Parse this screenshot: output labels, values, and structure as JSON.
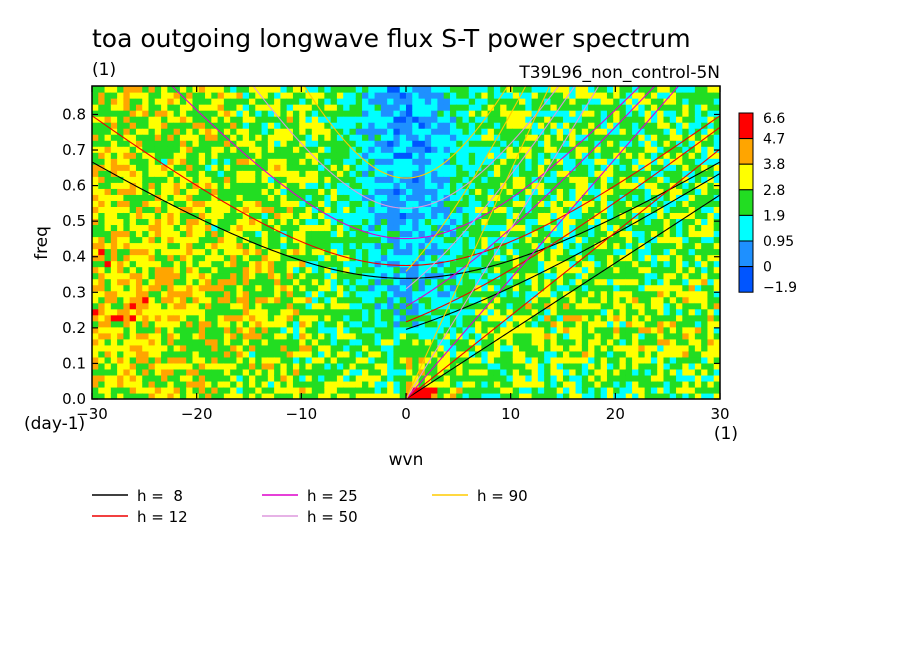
{
  "chart_data": {
    "type": "heatmap",
    "title": "toa outgoing longwave flux S-T power spectrum",
    "subtitle_left": "(1)",
    "subtitle_right": "T39L96_non_control-5N",
    "xlabel": "wvn",
    "ylabel": "freq",
    "x_unit": "(1)",
    "y_unit": "(day-1)",
    "xlim": [
      -30,
      30
    ],
    "ylim": [
      0,
      0.88
    ],
    "x_ticks": [
      {
        "value": -30,
        "label": "−30"
      },
      {
        "value": -20,
        "label": "−20"
      },
      {
        "value": -10,
        "label": "−10"
      },
      {
        "value": 0,
        "label": "0"
      },
      {
        "value": 10,
        "label": "10"
      },
      {
        "value": 20,
        "label": "20"
      },
      {
        "value": 30,
        "label": "30"
      }
    ],
    "y_ticks": [
      {
        "value": 0.0,
        "label": "0.0"
      },
      {
        "value": 0.1,
        "label": "0.1"
      },
      {
        "value": 0.2,
        "label": "0.2"
      },
      {
        "value": 0.3,
        "label": "0.3"
      },
      {
        "value": 0.4,
        "label": "0.4"
      },
      {
        "value": 0.5,
        "label": "0.5"
      },
      {
        "value": 0.6,
        "label": "0.6"
      },
      {
        "value": 0.7,
        "label": "0.7"
      },
      {
        "value": 0.8,
        "label": "0.8"
      }
    ],
    "colorbar": {
      "labels": [
        "6.6",
        "4.7",
        "3.8",
        "2.8",
        "1.9",
        "0.95",
        "0",
        "−1.9"
      ],
      "colors": [
        "#ff0000",
        "#ffa500",
        "#ffff00",
        "#22dd22",
        "#00ffff",
        "#1e90ff",
        "#0055ff"
      ]
    },
    "legend": [
      {
        "label": "h =  8",
        "color": "#000000"
      },
      {
        "label": "h = 12",
        "color": "#ee0000"
      },
      {
        "label": "h = 25",
        "color": "#dd00cc"
      },
      {
        "label": "h = 50",
        "color": "#dd99dd"
      },
      {
        "label": "h = 90",
        "color": "#ffcc00"
      }
    ]
  }
}
